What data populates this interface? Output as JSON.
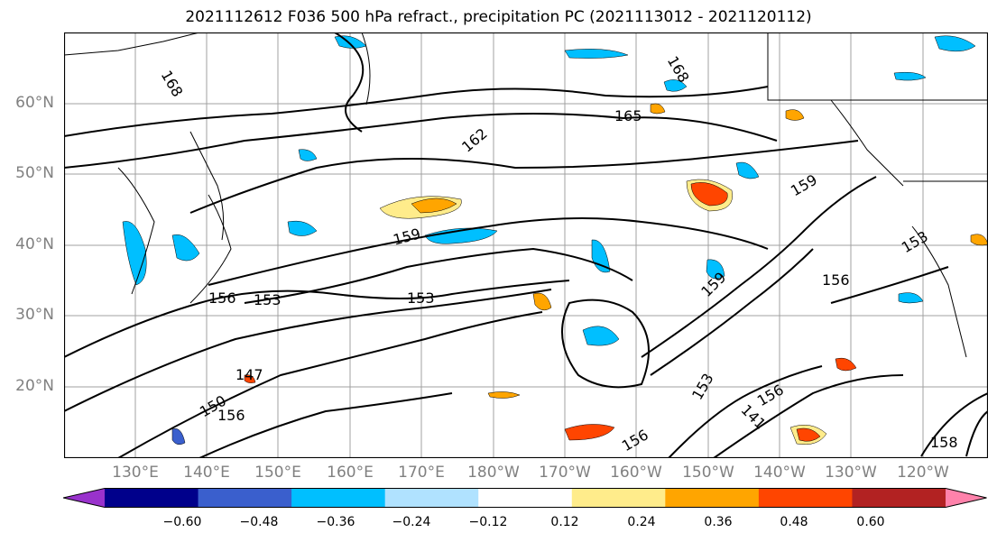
{
  "title": "2021112612 F036 500 hPa refract., precipitation PC (2021113012 - 2021120112)",
  "lat_labels": [
    "60°N",
    "50°N",
    "40°N",
    "30°N",
    "20°N"
  ],
  "lon_labels": [
    "130°E",
    "140°E",
    "150°E",
    "160°E",
    "170°E",
    "180°W",
    "170°W",
    "160°W",
    "150°W",
    "140°W",
    "130°W",
    "120°W"
  ],
  "contour_labels": [
    "168",
    "165",
    "162",
    "159",
    "156",
    "153",
    "150",
    "147",
    "141",
    "168",
    "165",
    "162",
    "159",
    "156",
    "153",
    "150",
    "156",
    "159",
    "153",
    "158",
    "156",
    "156",
    "153"
  ],
  "colorbar": {
    "colors": [
      "#9932cc",
      "#00008b",
      "#3a5fcd",
      "#00bfff",
      "#b0e2ff",
      "#ffffff",
      "#ffec8b",
      "#ffa500",
      "#ff4500",
      "#b22222",
      "#ff82ab"
    ],
    "ticks": [
      "−0.60",
      "−0.48",
      "−0.36",
      "−0.24",
      "−0.12",
      "0.12",
      "0.24",
      "0.36",
      "0.48",
      "0.60"
    ]
  }
}
